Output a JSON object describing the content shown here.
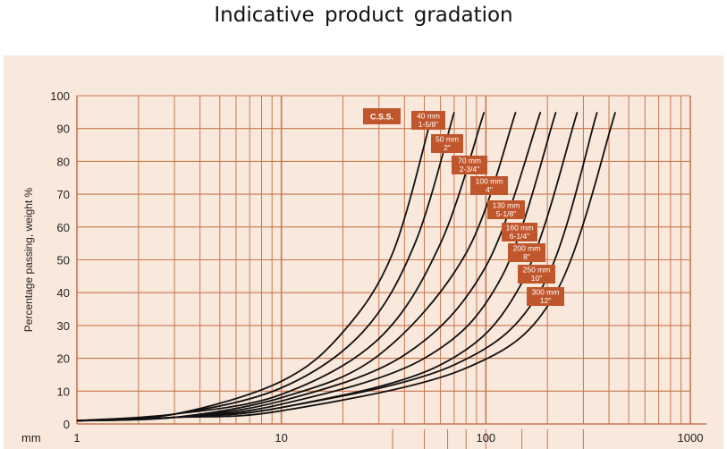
{
  "title": "Indicative  product    gradation",
  "chart_data": {
    "type": "line",
    "ylabel": "Percentage passing, weight %",
    "x_unit_label": "mm",
    "x_scale": "log",
    "xlim": [
      1,
      1000
    ],
    "ylim": [
      0,
      100
    ],
    "grid": true,
    "x_ticks": [
      1,
      10,
      100,
      1000
    ],
    "x_tick_labels": [
      "1",
      "10",
      "100",
      "1000"
    ],
    "y_ticks": [
      0,
      10,
      20,
      30,
      40,
      50,
      60,
      70,
      80,
      90,
      100
    ],
    "y_tick_labels": [
      "0",
      "10",
      "20",
      "30",
      "40",
      "50",
      "60",
      "70",
      "80",
      "90",
      "100"
    ],
    "colors": {
      "background": "#f9e8dc",
      "grid": "#c8784e",
      "curve": "#111111",
      "label_box": "#c0562b",
      "label_text": "#ffffff"
    },
    "series": [
      {
        "name": "40 mm 1-5/8\"",
        "x": [
          1,
          3,
          10,
          20,
          35,
          55
        ],
        "y": [
          1,
          3,
          13,
          28,
          52,
          95
        ]
      },
      {
        "name": "50 mm 2\"",
        "x": [
          1,
          3,
          10,
          25,
          45,
          70
        ],
        "y": [
          1,
          3,
          11,
          28,
          55,
          95
        ]
      },
      {
        "name": "70 mm 2-3/4\"",
        "x": [
          1,
          3,
          10,
          30,
          60,
          98
        ],
        "y": [
          1,
          3,
          9,
          26,
          55,
          95
        ]
      },
      {
        "name": "100 mm 4\"",
        "x": [
          1,
          3,
          10,
          30,
          80,
          140
        ],
        "y": [
          1,
          2,
          8,
          21,
          52,
          95
        ]
      },
      {
        "name": "130 mm 5-1/8\"",
        "x": [
          1,
          3,
          10,
          40,
          100,
          185
        ],
        "y": [
          1,
          2,
          7,
          21,
          48,
          95
        ]
      },
      {
        "name": "160 mm 6-1/4\"",
        "x": [
          1,
          3,
          10,
          50,
          120,
          220
        ],
        "y": [
          1,
          2,
          6,
          20,
          45,
          95
        ]
      },
      {
        "name": "200 mm 8\"",
        "x": [
          1,
          3,
          10,
          60,
          150,
          280
        ],
        "y": [
          1,
          2,
          5,
          18,
          43,
          95
        ]
      },
      {
        "name": "250 mm 10\"",
        "x": [
          1,
          3,
          10,
          70,
          190,
          350
        ],
        "y": [
          1,
          2,
          5,
          18,
          42,
          95
        ]
      },
      {
        "name": "300 mm 12\"",
        "x": [
          1,
          3,
          10,
          80,
          220,
          430
        ],
        "y": [
          1,
          2,
          4,
          17,
          40,
          95
        ]
      }
    ],
    "annotations": [
      {
        "lines": [
          "C.S.S."
        ]
      },
      {
        "lines": [
          "40 mm",
          "1-5/8\""
        ]
      },
      {
        "lines": [
          "50 mm",
          "2\""
        ]
      },
      {
        "lines": [
          "70 mm",
          "2-3/4\""
        ]
      },
      {
        "lines": [
          "100 mm",
          "4\""
        ]
      },
      {
        "lines": [
          "130 mm",
          "5-1/8\""
        ]
      },
      {
        "lines": [
          "160 mm",
          "6-1/4\""
        ]
      },
      {
        "lines": [
          "200 mm",
          "8\""
        ]
      },
      {
        "lines": [
          "250 mm",
          "10\""
        ]
      },
      {
        "lines": [
          "300 mm",
          "12\""
        ]
      }
    ]
  }
}
